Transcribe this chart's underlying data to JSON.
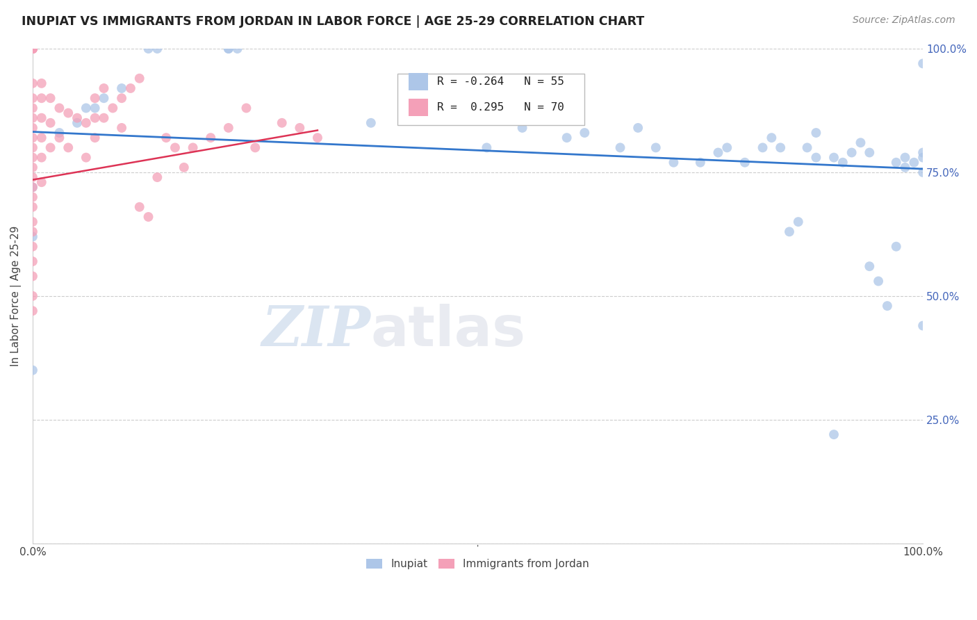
{
  "title": "INUPIAT VS IMMIGRANTS FROM JORDAN IN LABOR FORCE | AGE 25-29 CORRELATION CHART",
  "source": "Source: ZipAtlas.com",
  "ylabel": "In Labor Force | Age 25-29",
  "xlim": [
    0,
    1.0
  ],
  "ylim": [
    0,
    1.0
  ],
  "inupiat_color": "#adc6e8",
  "jordan_color": "#f4a0b8",
  "trend_color": "#3377cc",
  "jordan_trend_color": "#dd3355",
  "inupiat_R": -0.264,
  "jordan_R": 0.295,
  "inupiat_N": 55,
  "jordan_N": 70,
  "watermark_text": "ZIPatlas",
  "watermark_color": "#c5d8f0",
  "right_tick_color": "#4466bb",
  "inupiat_x": [
    0.0,
    0.0,
    0.0,
    0.03,
    0.05,
    0.06,
    0.07,
    0.08,
    0.1,
    0.13,
    0.14,
    0.22,
    0.22,
    0.23,
    0.38,
    0.5,
    0.51,
    0.55,
    0.6,
    0.62,
    0.66,
    0.68,
    0.7,
    0.72,
    0.75,
    0.77,
    0.78,
    0.8,
    0.82,
    0.83,
    0.84,
    0.85,
    0.86,
    0.87,
    0.88,
    0.88,
    0.9,
    0.9,
    0.91,
    0.92,
    0.93,
    0.94,
    0.94,
    0.95,
    0.96,
    0.97,
    0.97,
    0.98,
    0.98,
    0.99,
    1.0,
    1.0,
    1.0,
    1.0,
    1.0
  ],
  "inupiat_y": [
    0.35,
    0.62,
    0.72,
    0.83,
    0.85,
    0.88,
    0.88,
    0.9,
    0.92,
    1.0,
    1.0,
    1.0,
    1.0,
    1.0,
    0.85,
    0.87,
    0.8,
    0.84,
    0.82,
    0.83,
    0.8,
    0.84,
    0.8,
    0.77,
    0.77,
    0.79,
    0.8,
    0.77,
    0.8,
    0.82,
    0.8,
    0.63,
    0.65,
    0.8,
    0.83,
    0.78,
    0.78,
    0.22,
    0.77,
    0.79,
    0.81,
    0.56,
    0.79,
    0.53,
    0.48,
    0.6,
    0.77,
    0.76,
    0.78,
    0.77,
    0.75,
    0.78,
    0.79,
    0.97,
    0.44
  ],
  "jordan_x": [
    0.0,
    0.0,
    0.0,
    0.0,
    0.0,
    0.0,
    0.0,
    0.0,
    0.0,
    0.0,
    0.0,
    0.0,
    0.0,
    0.0,
    0.0,
    0.0,
    0.0,
    0.0,
    0.0,
    0.0,
    0.0,
    0.0,
    0.0,
    0.0,
    0.0,
    0.0,
    0.0,
    0.0,
    0.0,
    0.0,
    0.01,
    0.01,
    0.01,
    0.01,
    0.01,
    0.01,
    0.02,
    0.02,
    0.02,
    0.03,
    0.03,
    0.04,
    0.04,
    0.05,
    0.06,
    0.06,
    0.07,
    0.07,
    0.07,
    0.08,
    0.08,
    0.09,
    0.1,
    0.1,
    0.11,
    0.12,
    0.12,
    0.13,
    0.14,
    0.15,
    0.16,
    0.17,
    0.18,
    0.2,
    0.22,
    0.24,
    0.25,
    0.28,
    0.3,
    0.32
  ],
  "jordan_y": [
    1.0,
    1.0,
    1.0,
    1.0,
    1.0,
    1.0,
    1.0,
    1.0,
    1.0,
    1.0,
    0.93,
    0.9,
    0.88,
    0.86,
    0.84,
    0.82,
    0.8,
    0.78,
    0.76,
    0.74,
    0.72,
    0.7,
    0.68,
    0.65,
    0.63,
    0.6,
    0.57,
    0.54,
    0.5,
    0.47,
    0.93,
    0.9,
    0.86,
    0.82,
    0.78,
    0.73,
    0.9,
    0.85,
    0.8,
    0.88,
    0.82,
    0.87,
    0.8,
    0.86,
    0.85,
    0.78,
    0.9,
    0.86,
    0.82,
    0.92,
    0.86,
    0.88,
    0.9,
    0.84,
    0.92,
    0.94,
    0.68,
    0.66,
    0.74,
    0.82,
    0.8,
    0.76,
    0.8,
    0.82,
    0.84,
    0.88,
    0.8,
    0.85,
    0.84,
    0.82
  ],
  "inupiat_trend_x": [
    0.0,
    1.0
  ],
  "inupiat_trend_y": [
    0.832,
    0.757
  ],
  "jordan_trend_x": [
    0.0,
    0.32
  ],
  "jordan_trend_y": [
    0.735,
    0.835
  ]
}
